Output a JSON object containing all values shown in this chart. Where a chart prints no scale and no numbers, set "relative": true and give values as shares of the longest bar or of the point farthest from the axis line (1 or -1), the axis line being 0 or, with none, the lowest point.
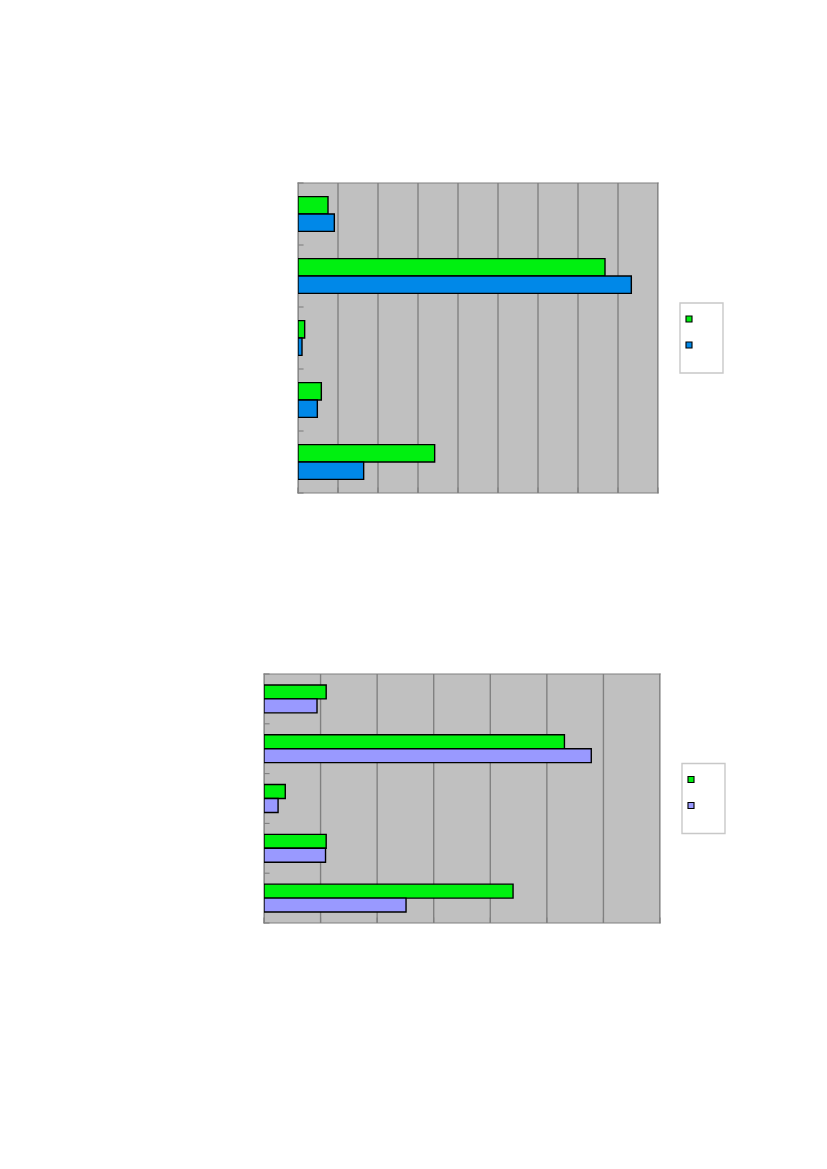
{
  "chart_data": [
    {
      "type": "bar",
      "orientation": "horizontal",
      "relative": true,
      "grid": "x",
      "categories": [
        null,
        null,
        null,
        null,
        null
      ],
      "series": [
        {
          "color": "#00f010",
          "values": [
            0.09,
            0.921,
            0.02,
            0.07,
            0.41
          ]
        },
        {
          "color": "#0088e8",
          "values": [
            0.109,
            1.0,
            0.012,
            0.058,
            0.197
          ]
        }
      ]
    },
    {
      "type": "bar",
      "orientation": "horizontal",
      "relative": true,
      "grid": "x",
      "categories": [
        null,
        null,
        null,
        null,
        null
      ],
      "series": [
        {
          "color": "#00f010",
          "values": [
            0.19,
            0.918,
            0.065,
            0.19,
            0.761
          ]
        },
        {
          "color": "#9999ff",
          "values": [
            0.162,
            1.0,
            0.043,
            0.188,
            0.434
          ]
        }
      ]
    }
  ]
}
